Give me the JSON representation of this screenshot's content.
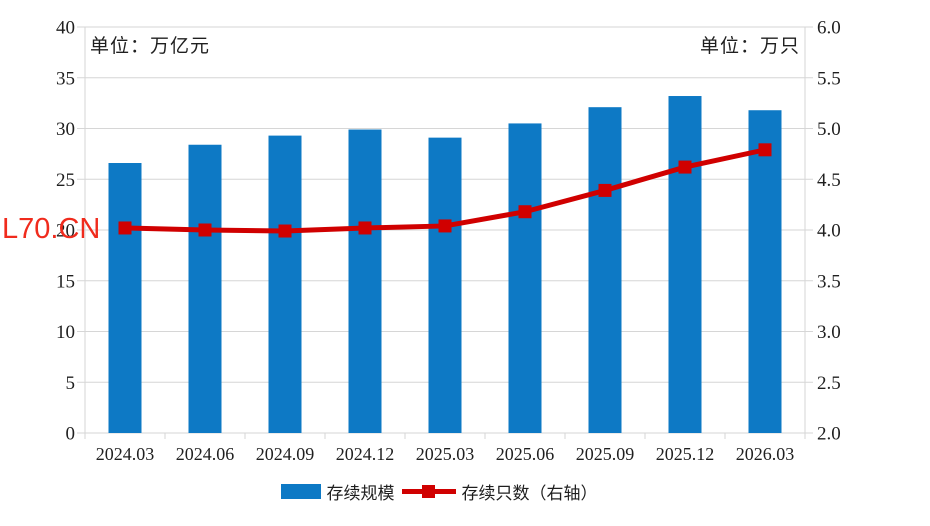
{
  "watermark": {
    "text": "L70.CN",
    "color": "#F02B1D"
  },
  "unit_labels": {
    "left": "单位：万亿元",
    "right": "单位：万只"
  },
  "legend": {
    "position": "bottom",
    "items": [
      {
        "label": "存续规模",
        "marker": "bar-swatch",
        "color": "#0D79C5"
      },
      {
        "label": "存续只数（右轴）",
        "marker": "line-swatch",
        "color": "#D00000"
      }
    ]
  },
  "colors": {
    "bar": "#0D79C5",
    "line": "#D00000",
    "grid": "#D6D6D6",
    "axis_text": "#1F1F1F",
    "background": "#FFFFFF"
  },
  "chart_data": {
    "type": "bar+line",
    "title": "",
    "categories": [
      "2024.03",
      "2024.06",
      "2024.09",
      "2024.12",
      "2025.03",
      "2025.06",
      "2025.09",
      "2025.12",
      "2026.03"
    ],
    "series": [
      {
        "name": "存续规模",
        "type": "bar",
        "axis": "left",
        "unit": "万亿元",
        "values": [
          26.6,
          28.4,
          29.3,
          29.9,
          29.1,
          30.5,
          32.1,
          33.2,
          31.8
        ]
      },
      {
        "name": "存续只数（右轴）",
        "type": "line",
        "axis": "right",
        "unit": "万只",
        "values": [
          4.02,
          4.0,
          3.99,
          4.02,
          4.04,
          4.18,
          4.39,
          4.62,
          4.79
        ]
      }
    ],
    "left_axis": {
      "min": 0,
      "max": 40,
      "step": 5,
      "label": "单位：万亿元",
      "ticks": [
        "0",
        "5",
        "10",
        "15",
        "20",
        "25",
        "30",
        "35",
        "40"
      ]
    },
    "right_axis": {
      "min": 2.0,
      "max": 6.0,
      "step": 0.5,
      "label": "单位：万只",
      "ticks": [
        "2.0",
        "2.5",
        "3.0",
        "3.5",
        "4.0",
        "4.5",
        "5.0",
        "5.5",
        "6.0"
      ]
    },
    "grid": true,
    "legend_position": "bottom"
  }
}
